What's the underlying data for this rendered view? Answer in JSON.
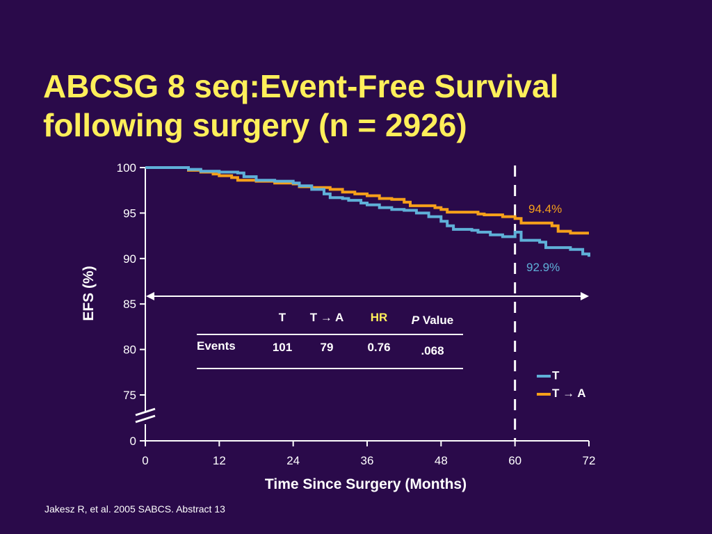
{
  "slide": {
    "title_line1": "ABCSG 8 seq:Event-Free Survival",
    "title_line2": "following surgery (n = 2926)",
    "footnote": "Jakesz R, et al. 2005 SABCS. Abstract 13"
  },
  "colors": {
    "background": "#2a0a4a",
    "title": "#ffef5a",
    "series_T": "#5fb0d8",
    "series_TA": "#f6a01a",
    "axis": "#ffffff"
  },
  "chart_data": {
    "type": "line",
    "xlabel": "Time Since Surgery (Months)",
    "ylabel": "EFS (%)",
    "xlim": [
      0,
      72
    ],
    "ylim": [
      0,
      100
    ],
    "y_axis_break": true,
    "x_ticks": [
      0,
      12,
      24,
      36,
      48,
      60,
      72
    ],
    "y_ticks": [
      0,
      75,
      80,
      85,
      90,
      95,
      100
    ],
    "grid": false,
    "legend_position": "bottom-right",
    "reference_line_x": 60,
    "series": [
      {
        "name": "T",
        "color": "#5fb0d8",
        "end_label": "92.9%",
        "points": [
          [
            0,
            100
          ],
          [
            6,
            100
          ],
          [
            7,
            99.8
          ],
          [
            9,
            99.6
          ],
          [
            12,
            99.5
          ],
          [
            15,
            99.4
          ],
          [
            16,
            99.0
          ],
          [
            18,
            98.6
          ],
          [
            21,
            98.5
          ],
          [
            24,
            98.3
          ],
          [
            25,
            98.0
          ],
          [
            27,
            97.6
          ],
          [
            29,
            97.1
          ],
          [
            30,
            96.7
          ],
          [
            32,
            96.6
          ],
          [
            33,
            96.4
          ],
          [
            35,
            96.1
          ],
          [
            36,
            95.9
          ],
          [
            38,
            95.6
          ],
          [
            40,
            95.4
          ],
          [
            42,
            95.3
          ],
          [
            44,
            95.0
          ],
          [
            46,
            94.6
          ],
          [
            48,
            94.1
          ],
          [
            49,
            93.6
          ],
          [
            50,
            93.2
          ],
          [
            53,
            93.1
          ],
          [
            54,
            92.9
          ],
          [
            56,
            92.6
          ],
          [
            58,
            92.4
          ],
          [
            60,
            92.9
          ],
          [
            61,
            92.0
          ],
          [
            64,
            91.8
          ],
          [
            65,
            91.2
          ],
          [
            69,
            91.0
          ],
          [
            71,
            90.5
          ],
          [
            72,
            90.2
          ]
        ]
      },
      {
        "name": "T → A",
        "color": "#f6a01a",
        "end_label": "94.4%",
        "points": [
          [
            0,
            100
          ],
          [
            6,
            100
          ],
          [
            7,
            99.7
          ],
          [
            9,
            99.5
          ],
          [
            11,
            99.3
          ],
          [
            12,
            99.1
          ],
          [
            14,
            98.9
          ],
          [
            15,
            98.6
          ],
          [
            18,
            98.5
          ],
          [
            21,
            98.3
          ],
          [
            24,
            98.2
          ],
          [
            25,
            97.9
          ],
          [
            27,
            97.8
          ],
          [
            30,
            97.6
          ],
          [
            32,
            97.3
          ],
          [
            34,
            97.1
          ],
          [
            36,
            96.9
          ],
          [
            38,
            96.6
          ],
          [
            40,
            96.5
          ],
          [
            42,
            96.2
          ],
          [
            43,
            95.8
          ],
          [
            47,
            95.6
          ],
          [
            48,
            95.4
          ],
          [
            49,
            95.1
          ],
          [
            54,
            94.9
          ],
          [
            55,
            94.8
          ],
          [
            58,
            94.6
          ],
          [
            60,
            94.4
          ],
          [
            61,
            93.9
          ],
          [
            66,
            93.6
          ],
          [
            67,
            93.0
          ],
          [
            69,
            92.8
          ],
          [
            72,
            92.8
          ]
        ]
      }
    ],
    "table": {
      "headers": {
        "T": "T",
        "TA_left": "T ",
        "TA_arrow": "→",
        "TA_right": " A",
        "HR": "HR",
        "P_italic": "P",
        "P_rest": " Value"
      },
      "row_label": "Events",
      "values": {
        "T": "101",
        "TA": "79",
        "HR": "0.76",
        "P": ".068"
      }
    },
    "legend": {
      "T": "T",
      "TA_left": "T ",
      "TA_arrow": "→",
      "TA_right": " A"
    }
  }
}
